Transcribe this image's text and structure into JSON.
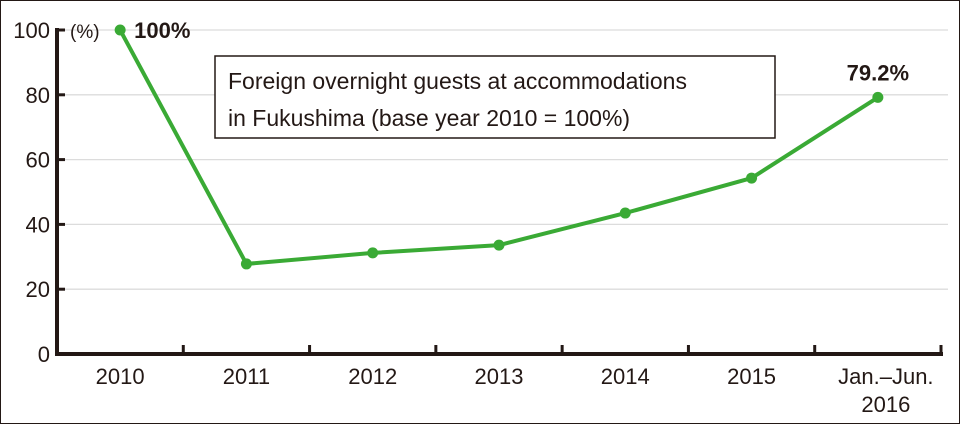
{
  "chart_data": {
    "type": "line",
    "title": "Foreign overnight guests at accommodations in Fukushima (base year 2010 = 100%)",
    "title_lines": [
      "Foreign overnight guests at accommodations",
      "in Fukushima (base year 2010 = 100%)"
    ],
    "ylabel": "(%)",
    "xlabel": "",
    "categories": [
      "2010",
      "2011",
      "2012",
      "2013",
      "2014",
      "2015",
      "Jan.–Jun. 2016"
    ],
    "category_lines": [
      [
        "2010"
      ],
      [
        "2011"
      ],
      [
        "2012"
      ],
      [
        "2013"
      ],
      [
        "2014"
      ],
      [
        "2015"
      ],
      [
        "Jan.–Jun.",
        "2016"
      ]
    ],
    "values": [
      100,
      27.8,
      31.2,
      33.6,
      43.5,
      54.3,
      79.2
    ],
    "data_labels": [
      {
        "index": 0,
        "text": "100%"
      },
      {
        "index": 6,
        "text": "79.2%"
      }
    ],
    "yticks": [
      "0",
      "20",
      "40",
      "60",
      "80",
      "100"
    ],
    "ylim": [
      0,
      100
    ],
    "grid": true,
    "colors": {
      "line": "#3aaa35",
      "axis": "#231815",
      "grid": "#dcdcdc"
    }
  }
}
